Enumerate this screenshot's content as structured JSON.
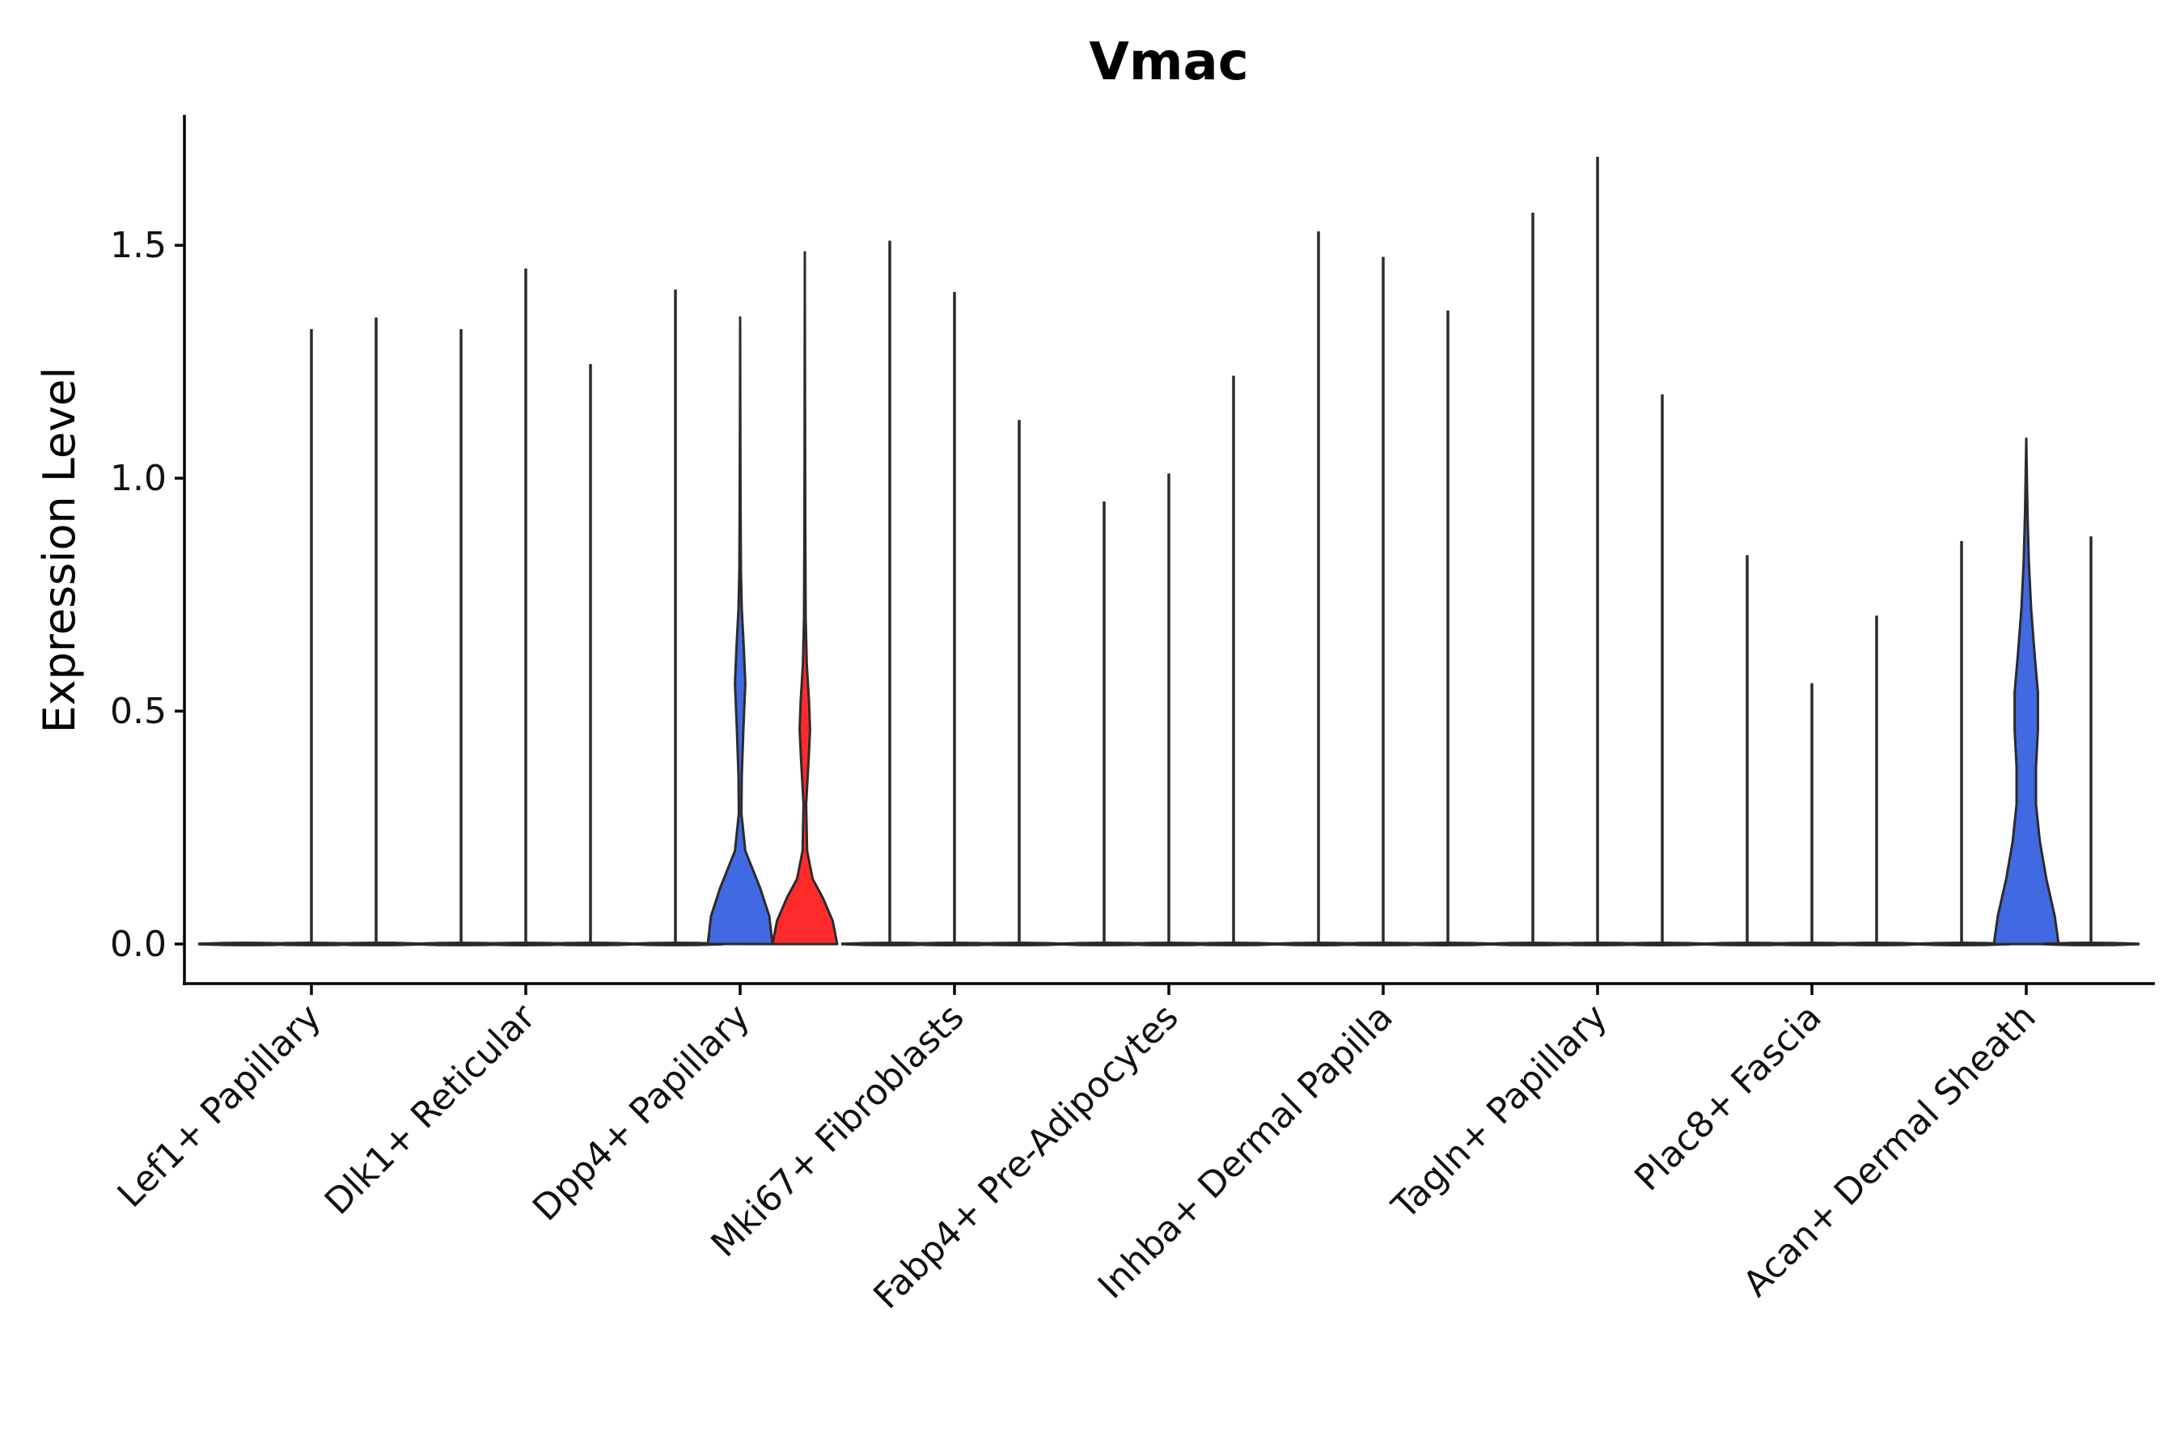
{
  "chart_data": {
    "type": "violin",
    "title": "Vmac",
    "xlabel": "",
    "ylabel": "Expression Level",
    "ylim": [
      -0.085,
      1.78
    ],
    "yticks": [
      0.0,
      0.5,
      1.0,
      1.5
    ],
    "ytick_labels": [
      "0.0",
      "0.5",
      "1.0",
      "1.5"
    ],
    "grid": false,
    "legend": "none",
    "categories": [
      "Lef1+ Papillary",
      "Dlk1+ Reticular",
      "Dpp4+ Papillary",
      "Mki67+ Fibroblasts",
      "Fabp4+ Pre-Adipocytes",
      "Inhba+ Dermal Papilla",
      "Tagln+ Papillary",
      "Plac8+ Fascia",
      "Acan+ Dermal Sheath"
    ],
    "groups_per_category": 3,
    "violins": [
      {
        "category": "Lef1+ Papillary",
        "group": 1,
        "max": 0.0,
        "color": "#5a5a5a",
        "profile": "flat"
      },
      {
        "category": "Lef1+ Papillary",
        "group": 2,
        "max": 1.32,
        "color": "#5a5a5a",
        "profile": "flat"
      },
      {
        "category": "Lef1+ Papillary",
        "group": 3,
        "max": 1.345,
        "color": "#5a5a5a",
        "profile": "flat"
      },
      {
        "category": "Dlk1+ Reticular",
        "group": 1,
        "max": 1.32,
        "color": "#5a5a5a",
        "profile": "flat"
      },
      {
        "category": "Dlk1+ Reticular",
        "group": 2,
        "max": 1.45,
        "color": "#5a5a5a",
        "profile": "flat"
      },
      {
        "category": "Dlk1+ Reticular",
        "group": 3,
        "max": 1.245,
        "color": "#5a5a5a",
        "profile": "flat"
      },
      {
        "category": "Dpp4+ Papillary",
        "group": 1,
        "max": 1.405,
        "color": "#5a5a5a",
        "profile": "flat"
      },
      {
        "category": "Dpp4+ Papillary",
        "group": 2,
        "max": 1.345,
        "color": "#4169e1",
        "profile": "dpp4_blue"
      },
      {
        "category": "Dpp4+ Papillary",
        "group": 3,
        "max": 1.485,
        "color": "#ff2a2a",
        "profile": "dpp4_red"
      },
      {
        "category": "Mki67+ Fibroblasts",
        "group": 1,
        "max": 1.51,
        "color": "#5a5a5a",
        "profile": "flat"
      },
      {
        "category": "Mki67+ Fibroblasts",
        "group": 2,
        "max": 1.4,
        "color": "#5a5a5a",
        "profile": "flat"
      },
      {
        "category": "Mki67+ Fibroblasts",
        "group": 3,
        "max": 1.125,
        "color": "#5a5a5a",
        "profile": "flat"
      },
      {
        "category": "Fabp4+ Pre-Adipocytes",
        "group": 1,
        "max": 0.95,
        "color": "#5a5a5a",
        "profile": "flat"
      },
      {
        "category": "Fabp4+ Pre-Adipocytes",
        "group": 2,
        "max": 1.01,
        "color": "#5a5a5a",
        "profile": "flat"
      },
      {
        "category": "Fabp4+ Pre-Adipocytes",
        "group": 3,
        "max": 1.22,
        "color": "#5a5a5a",
        "profile": "flat"
      },
      {
        "category": "Inhba+ Dermal Papilla",
        "group": 1,
        "max": 1.53,
        "color": "#5a5a5a",
        "profile": "flat"
      },
      {
        "category": "Inhba+ Dermal Papilla",
        "group": 2,
        "max": 1.475,
        "color": "#5a5a5a",
        "profile": "flat"
      },
      {
        "category": "Inhba+ Dermal Papilla",
        "group": 3,
        "max": 1.36,
        "color": "#5a5a5a",
        "profile": "flat"
      },
      {
        "category": "Tagln+ Papillary",
        "group": 1,
        "max": 1.57,
        "color": "#5a5a5a",
        "profile": "flat"
      },
      {
        "category": "Tagln+ Papillary",
        "group": 2,
        "max": 1.69,
        "color": "#5a5a5a",
        "profile": "flat"
      },
      {
        "category": "Tagln+ Papillary",
        "group": 3,
        "max": 1.18,
        "color": "#5a5a5a",
        "profile": "flat"
      },
      {
        "category": "Plac8+ Fascia",
        "group": 1,
        "max": 0.835,
        "color": "#5a5a5a",
        "profile": "flat"
      },
      {
        "category": "Plac8+ Fascia",
        "group": 2,
        "max": 0.56,
        "color": "#5a5a5a",
        "profile": "flat"
      },
      {
        "category": "Plac8+ Fascia",
        "group": 3,
        "max": 0.705,
        "color": "#5a5a5a",
        "profile": "flat"
      },
      {
        "category": "Acan+ Dermal Sheath",
        "group": 1,
        "max": 0.865,
        "color": "#5a5a5a",
        "profile": "flat"
      },
      {
        "category": "Acan+ Dermal Sheath",
        "group": 2,
        "max": 1.085,
        "color": "#4169e1",
        "profile": "acan_blue"
      },
      {
        "category": "Acan+ Dermal Sheath",
        "group": 3,
        "max": 0.875,
        "color": "#5a5a5a",
        "profile": "flat"
      }
    ],
    "density_profiles": {
      "dpp4_blue": [
        [
          0.0,
          1.0
        ],
        [
          0.06,
          0.9
        ],
        [
          0.12,
          0.62
        ],
        [
          0.2,
          0.16
        ],
        [
          0.28,
          0.04
        ],
        [
          0.36,
          0.05
        ],
        [
          0.46,
          0.1
        ],
        [
          0.56,
          0.16
        ],
        [
          0.64,
          0.11
        ],
        [
          0.72,
          0.05
        ],
        [
          0.8,
          0.025
        ],
        [
          0.95,
          0.012
        ],
        [
          1.15,
          0.006
        ],
        [
          1.345,
          0.0
        ]
      ],
      "dpp4_red": [
        [
          0.0,
          1.0
        ],
        [
          0.05,
          0.86
        ],
        [
          0.1,
          0.55
        ],
        [
          0.14,
          0.24
        ],
        [
          0.2,
          0.07
        ],
        [
          0.3,
          0.04
        ],
        [
          0.4,
          0.12
        ],
        [
          0.46,
          0.16
        ],
        [
          0.52,
          0.13
        ],
        [
          0.6,
          0.06
        ],
        [
          0.7,
          0.025
        ],
        [
          0.9,
          0.012
        ],
        [
          1.2,
          0.006
        ],
        [
          1.485,
          0.0
        ]
      ],
      "acan_blue": [
        [
          0.0,
          1.0
        ],
        [
          0.06,
          0.88
        ],
        [
          0.14,
          0.62
        ],
        [
          0.22,
          0.42
        ],
        [
          0.3,
          0.3
        ],
        [
          0.38,
          0.3
        ],
        [
          0.46,
          0.36
        ],
        [
          0.54,
          0.36
        ],
        [
          0.62,
          0.26
        ],
        [
          0.72,
          0.15
        ],
        [
          0.82,
          0.08
        ],
        [
          0.92,
          0.04
        ],
        [
          1.02,
          0.015
        ],
        [
          1.085,
          0.0
        ]
      ]
    }
  }
}
